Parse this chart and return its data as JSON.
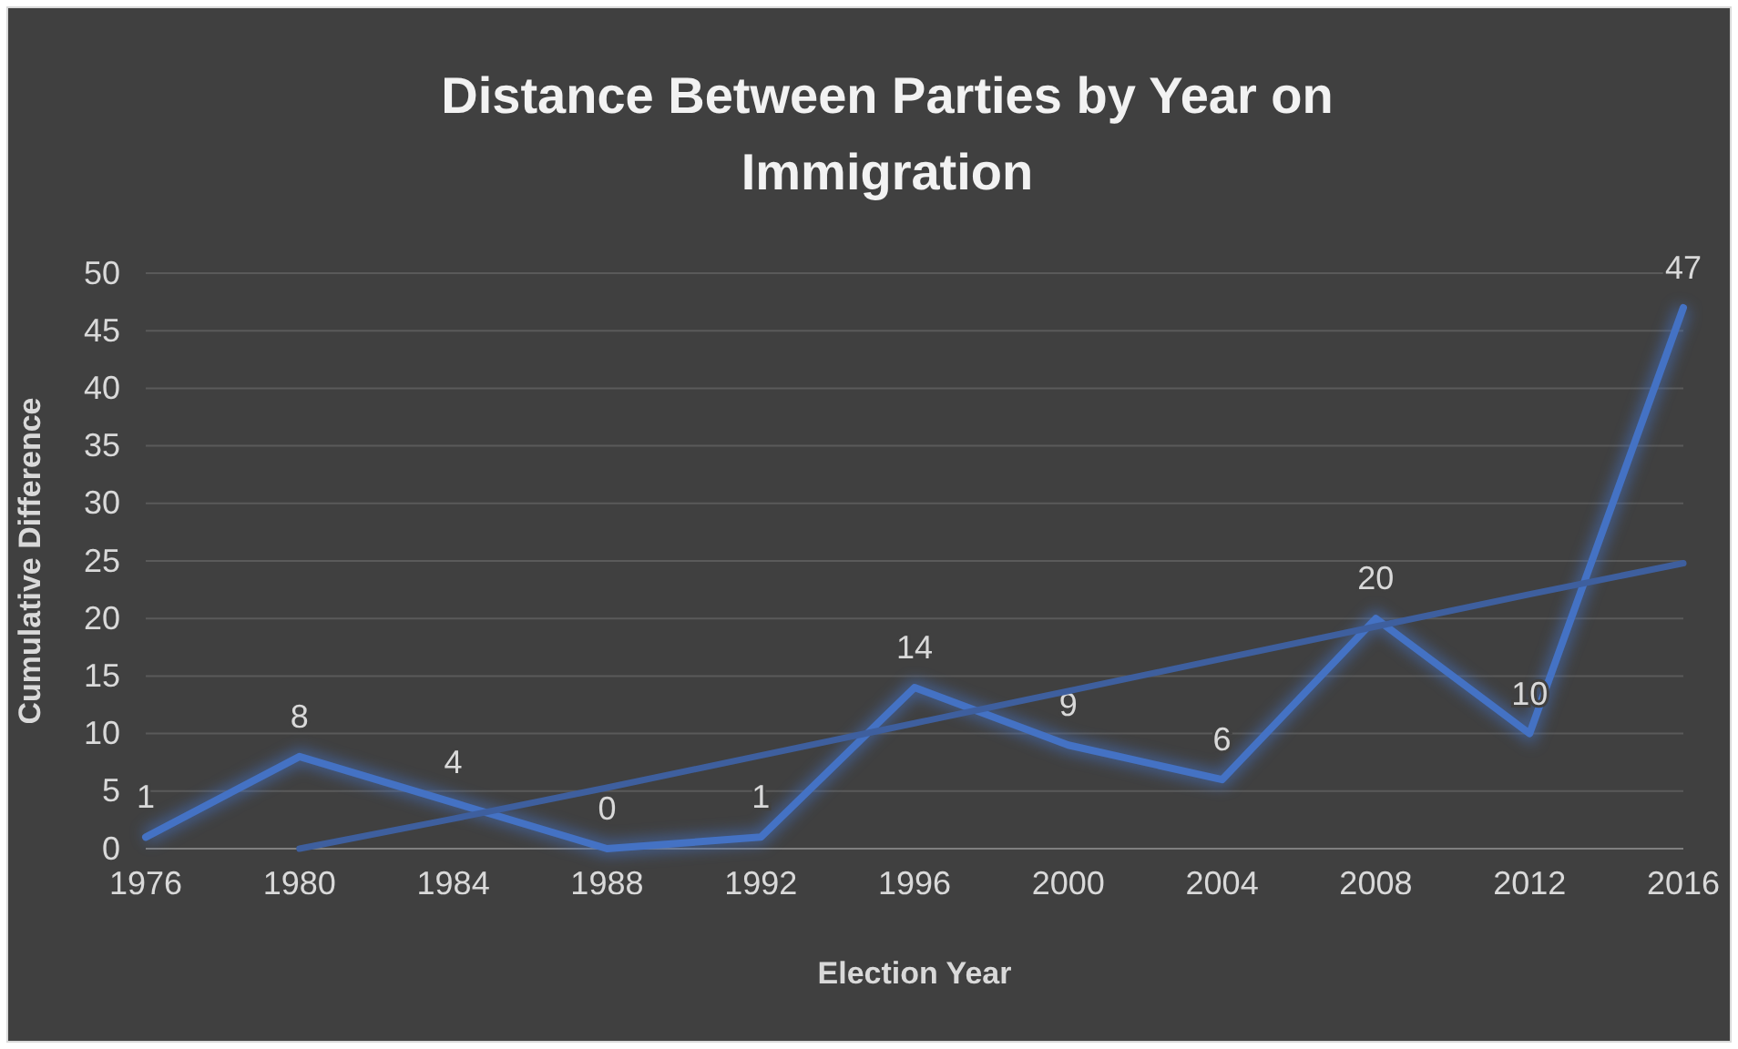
{
  "chart_data": {
    "type": "line",
    "title": "Distance Between Parties by Year on Immigration",
    "xlabel": "Election Year",
    "ylabel": "Cumulative Difference",
    "categories": [
      "1976",
      "1980",
      "1984",
      "1988",
      "1992",
      "1996",
      "2000",
      "2004",
      "2008",
      "2012",
      "2016"
    ],
    "series": [
      {
        "color": "#4472c4",
        "values": [
          1,
          8,
          4,
          0,
          1,
          14,
          9,
          6,
          20,
          10,
          47
        ],
        "value_labels": [
          "1",
          "8",
          "4",
          "0",
          "1",
          "14",
          "9",
          "6",
          "20",
          "10",
          "47"
        ]
      },
      {
        "color": "#3e5f9e",
        "values": [
          null,
          0,
          2.6,
          5.3,
          8.1,
          10.9,
          13.7,
          16.5,
          19.3,
          22.1,
          24.8
        ]
      }
    ],
    "ylim": [
      0,
      50
    ],
    "yticks": [
      0,
      5,
      10,
      15,
      20,
      25,
      30,
      35,
      40,
      45,
      50
    ],
    "grid": "y",
    "marker": "none",
    "line_style": "solid"
  }
}
